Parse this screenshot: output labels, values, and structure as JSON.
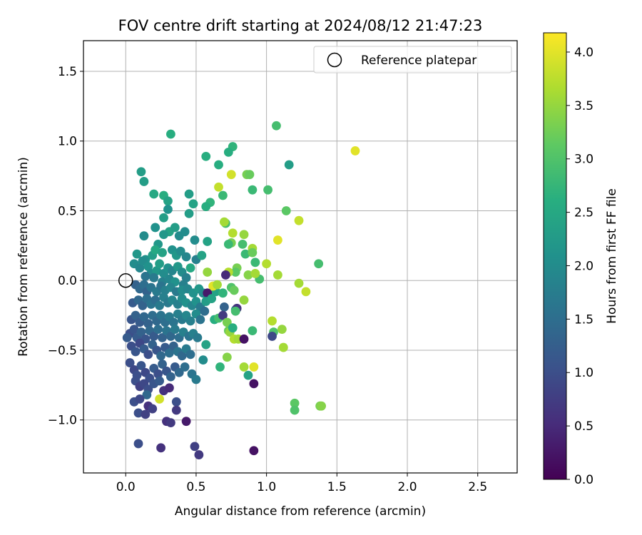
{
  "chart_data": {
    "type": "scatter",
    "title": "FOV centre drift starting at 2024/08/12 21:47:23",
    "xlabel": "Angular distance from reference (arcmin)",
    "ylabel": "Rotation from reference (arcmin)",
    "xlim": [
      -0.3,
      2.78
    ],
    "ylim": [
      -1.38,
      1.72
    ],
    "x_ticks": [
      0.0,
      0.5,
      1.0,
      1.5,
      2.0,
      2.5
    ],
    "x_tick_labels": [
      "0.0",
      "0.5",
      "1.0",
      "1.5",
      "2.0",
      "2.5"
    ],
    "y_ticks": [
      -1.0,
      -0.5,
      0.0,
      0.5,
      1.0,
      1.5
    ],
    "y_tick_labels": [
      "−1.0",
      "−0.5",
      "0.0",
      "0.5",
      "1.0",
      "1.5"
    ],
    "grid": true,
    "legend": {
      "placement": "top-right",
      "entries": [
        {
          "label": "Reference platepar",
          "marker": "open-circle"
        }
      ]
    },
    "reference_point": {
      "x": 0.0,
      "y": 0.0
    },
    "colorbar": {
      "label": "Hours from first FF file",
      "colormap": "viridis",
      "range": [
        0.0,
        4.18
      ],
      "ticks": [
        0.0,
        0.5,
        1.0,
        1.5,
        2.0,
        2.5,
        3.0,
        3.5,
        4.0
      ],
      "tick_labels": [
        "0.0",
        "0.5",
        "1.0",
        "1.5",
        "2.0",
        "2.5",
        "3.0",
        "3.5",
        "4.0"
      ]
    },
    "points": [
      [
        0.32,
        1.05,
        2.6
      ],
      [
        1.07,
        1.11,
        2.9
      ],
      [
        1.63,
        0.93,
        4.0
      ],
      [
        0.76,
        0.96,
        2.7
      ],
      [
        0.73,
        0.92,
        2.6
      ],
      [
        0.57,
        0.89,
        2.6
      ],
      [
        1.16,
        0.83,
        2.3
      ],
      [
        0.66,
        0.83,
        2.6
      ],
      [
        0.11,
        0.78,
        2.3
      ],
      [
        0.75,
        0.76,
        3.9
      ],
      [
        0.86,
        0.76,
        3.3
      ],
      [
        0.88,
        0.76,
        3.2
      ],
      [
        0.13,
        0.71,
        2.3
      ],
      [
        0.66,
        0.67,
        3.8
      ],
      [
        0.9,
        0.65,
        2.8
      ],
      [
        1.01,
        0.65,
        2.9
      ],
      [
        0.69,
        0.61,
        2.8
      ],
      [
        0.2,
        0.62,
        2.5
      ],
      [
        0.27,
        0.61,
        2.6
      ],
      [
        0.45,
        0.62,
        2.3
      ],
      [
        0.3,
        0.57,
        2.4
      ],
      [
        0.48,
        0.55,
        2.4
      ],
      [
        0.6,
        0.56,
        2.7
      ],
      [
        0.57,
        0.53,
        2.6
      ],
      [
        0.3,
        0.51,
        2.1
      ],
      [
        0.45,
        0.48,
        2.3
      ],
      [
        1.14,
        0.5,
        3.1
      ],
      [
        1.23,
        0.43,
        3.8
      ],
      [
        0.27,
        0.45,
        2.3
      ],
      [
        0.71,
        0.41,
        2.9
      ],
      [
        0.7,
        0.42,
        3.6
      ],
      [
        0.21,
        0.38,
        2.1
      ],
      [
        0.31,
        0.35,
        2.4
      ],
      [
        0.35,
        0.38,
        2.3
      ],
      [
        0.42,
        0.35,
        2.0
      ],
      [
        0.27,
        0.33,
        2.2
      ],
      [
        0.38,
        0.32,
        2.0
      ],
      [
        0.13,
        0.32,
        2.0
      ],
      [
        0.76,
        0.34,
        3.7
      ],
      [
        0.84,
        0.33,
        3.5
      ],
      [
        0.75,
        0.27,
        3.3
      ],
      [
        0.73,
        0.26,
        2.8
      ],
      [
        0.49,
        0.29,
        2.0
      ],
      [
        0.58,
        0.28,
        2.4
      ],
      [
        0.83,
        0.26,
        2.9
      ],
      [
        0.23,
        0.26,
        2.2
      ],
      [
        1.08,
        0.29,
        4.0
      ],
      [
        0.08,
        0.19,
        2.2
      ],
      [
        0.14,
        0.15,
        2.1
      ],
      [
        0.19,
        0.18,
        2.3
      ],
      [
        0.21,
        0.22,
        2.5
      ],
      [
        0.26,
        0.2,
        2.4
      ],
      [
        0.33,
        0.22,
        2.1
      ],
      [
        0.36,
        0.18,
        2.2
      ],
      [
        0.39,
        0.21,
        2.0
      ],
      [
        0.43,
        0.17,
        1.9
      ],
      [
        0.5,
        0.15,
        1.8
      ],
      [
        0.54,
        0.18,
        2.4
      ],
      [
        0.85,
        0.19,
        2.8
      ],
      [
        0.9,
        0.23,
        3.6
      ],
      [
        0.9,
        0.2,
        3.2
      ],
      [
        0.92,
        0.13,
        2.8
      ],
      [
        0.79,
        0.09,
        3.3
      ],
      [
        0.78,
        0.06,
        3.1
      ],
      [
        0.73,
        0.06,
        3.7
      ],
      [
        1.0,
        0.12,
        3.7
      ],
      [
        1.08,
        0.04,
        3.6
      ],
      [
        1.37,
        0.12,
        2.9
      ],
      [
        0.87,
        0.04,
        3.4
      ],
      [
        0.95,
        0.01,
        2.9
      ],
      [
        0.92,
        0.05,
        3.6
      ],
      [
        0.58,
        0.06,
        3.5
      ],
      [
        0.06,
        0.12,
        2.0
      ],
      [
        0.1,
        0.09,
        1.9
      ],
      [
        0.12,
        0.14,
        2.0
      ],
      [
        0.16,
        0.1,
        2.1
      ],
      [
        0.18,
        0.05,
        2.0
      ],
      [
        0.22,
        0.07,
        2.2
      ],
      [
        0.24,
        0.12,
        2.3
      ],
      [
        0.27,
        0.05,
        2.0
      ],
      [
        0.3,
        0.09,
        2.1
      ],
      [
        0.33,
        0.07,
        1.9
      ],
      [
        0.37,
        0.1,
        2.2
      ],
      [
        0.4,
        0.06,
        2.0
      ],
      [
        0.43,
        0.02,
        1.8
      ],
      [
        0.46,
        0.09,
        2.5
      ],
      [
        0.14,
        0.03,
        1.6
      ],
      [
        0.2,
        0.02,
        1.7
      ],
      [
        0.26,
        -0.01,
        1.8
      ],
      [
        0.31,
        0.01,
        1.9
      ],
      [
        0.35,
        -0.01,
        2.1
      ],
      [
        0.41,
        -0.03,
        1.8
      ],
      [
        0.07,
        -0.03,
        1.3
      ],
      [
        0.1,
        -0.06,
        1.4
      ],
      [
        0.13,
        -0.03,
        1.5
      ],
      [
        0.15,
        -0.08,
        1.3
      ],
      [
        0.18,
        -0.05,
        1.6
      ],
      [
        0.22,
        -0.08,
        1.7
      ],
      [
        0.25,
        -0.04,
        1.6
      ],
      [
        0.28,
        -0.07,
        1.8
      ],
      [
        0.32,
        -0.05,
        1.9
      ],
      [
        0.36,
        -0.08,
        1.7
      ],
      [
        0.4,
        -0.07,
        2.0
      ],
      [
        0.44,
        -0.06,
        1.9
      ],
      [
        0.48,
        -0.09,
        2.1
      ],
      [
        0.52,
        -0.06,
        2.2
      ],
      [
        0.55,
        -0.09,
        2.0
      ],
      [
        0.6,
        -0.12,
        2.2
      ],
      [
        0.64,
        -0.08,
        2.4
      ],
      [
        0.69,
        -0.09,
        2.7
      ],
      [
        0.75,
        -0.05,
        3.0
      ],
      [
        0.77,
        -0.07,
        3.2
      ],
      [
        0.62,
        -0.04,
        4.0
      ],
      [
        0.65,
        -0.03,
        3.6
      ],
      [
        0.58,
        -0.09,
        0.3
      ],
      [
        0.84,
        -0.14,
        3.5
      ],
      [
        1.23,
        -0.02,
        3.6
      ],
      [
        1.28,
        -0.08,
        3.8
      ],
      [
        0.71,
        0.04,
        0.5
      ],
      [
        0.05,
        -0.16,
        1.2
      ],
      [
        0.09,
        -0.14,
        1.4
      ],
      [
        0.12,
        -0.18,
        1.3
      ],
      [
        0.15,
        -0.13,
        1.5
      ],
      [
        0.18,
        -0.17,
        1.6
      ],
      [
        0.21,
        -0.14,
        1.5
      ],
      [
        0.24,
        -0.18,
        1.7
      ],
      [
        0.27,
        -0.12,
        1.8
      ],
      [
        0.3,
        -0.16,
        1.7
      ],
      [
        0.33,
        -0.14,
        1.9
      ],
      [
        0.37,
        -0.17,
        1.8
      ],
      [
        0.4,
        -0.13,
        2.0
      ],
      [
        0.43,
        -0.16,
        2.1
      ],
      [
        0.47,
        -0.18,
        1.9
      ],
      [
        0.5,
        -0.15,
        2.1
      ],
      [
        0.53,
        -0.19,
        1.7
      ],
      [
        0.57,
        -0.15,
        2.3
      ],
      [
        0.61,
        -0.13,
        2.4
      ],
      [
        0.7,
        -0.19,
        1.3
      ],
      [
        0.78,
        -0.21,
        2.1
      ],
      [
        0.79,
        -0.2,
        0.6
      ],
      [
        0.78,
        -0.22,
        2.9
      ],
      [
        0.04,
        -0.28,
        1.1
      ],
      [
        0.07,
        -0.25,
        1.3
      ],
      [
        0.1,
        -0.3,
        1.2
      ],
      [
        0.13,
        -0.26,
        1.4
      ],
      [
        0.16,
        -0.31,
        1.3
      ],
      [
        0.19,
        -0.25,
        1.5
      ],
      [
        0.22,
        -0.29,
        1.4
      ],
      [
        0.25,
        -0.25,
        1.6
      ],
      [
        0.28,
        -0.3,
        1.5
      ],
      [
        0.31,
        -0.26,
        1.7
      ],
      [
        0.34,
        -0.3,
        1.6
      ],
      [
        0.37,
        -0.24,
        1.8
      ],
      [
        0.4,
        -0.28,
        1.7
      ],
      [
        0.43,
        -0.25,
        1.9
      ],
      [
        0.46,
        -0.29,
        1.8
      ],
      [
        0.5,
        -0.24,
        2.0
      ],
      [
        0.53,
        -0.28,
        1.6
      ],
      [
        0.56,
        -0.22,
        1.5
      ],
      [
        0.63,
        -0.28,
        2.6
      ],
      [
        0.66,
        -0.27,
        2.9
      ],
      [
        0.69,
        -0.25,
        0.7
      ],
      [
        0.72,
        -0.3,
        3.3
      ],
      [
        0.73,
        -0.36,
        3.2
      ],
      [
        0.74,
        -0.37,
        3.5
      ],
      [
        0.76,
        -0.34,
        2.6
      ],
      [
        1.04,
        -0.29,
        3.7
      ],
      [
        0.03,
        -0.38,
        1.0
      ],
      [
        0.06,
        -0.35,
        1.1
      ],
      [
        0.08,
        -0.41,
        1.2
      ],
      [
        0.11,
        -0.37,
        1.3
      ],
      [
        0.14,
        -0.42,
        1.1
      ],
      [
        0.17,
        -0.36,
        1.4
      ],
      [
        0.2,
        -0.4,
        1.2
      ],
      [
        0.23,
        -0.35,
        1.5
      ],
      [
        0.26,
        -0.41,
        1.3
      ],
      [
        0.29,
        -0.36,
        1.6
      ],
      [
        0.32,
        -0.4,
        1.4
      ],
      [
        0.35,
        -0.35,
        1.7
      ],
      [
        0.38,
        -0.41,
        1.5
      ],
      [
        0.41,
        -0.37,
        1.8
      ],
      [
        0.45,
        -0.4,
        1.6
      ],
      [
        0.48,
        -0.38,
        1.8
      ],
      [
        0.51,
        -0.41,
        1.7
      ],
      [
        0.77,
        -0.42,
        3.7
      ],
      [
        0.8,
        -0.42,
        3.6
      ],
      [
        0.84,
        -0.42,
        0.2
      ],
      [
        0.9,
        -0.36,
        2.8
      ],
      [
        1.05,
        -0.37,
        3.0
      ],
      [
        1.04,
        -0.4,
        0.9
      ],
      [
        1.11,
        -0.35,
        3.5
      ],
      [
        0.01,
        -0.41,
        1.2
      ],
      [
        0.04,
        -0.47,
        1.0
      ],
      [
        0.07,
        -0.51,
        1.1
      ],
      [
        0.1,
        -0.45,
        0.9
      ],
      [
        0.13,
        -0.49,
        1.2
      ],
      [
        0.16,
        -0.53,
        1.0
      ],
      [
        0.19,
        -0.46,
        1.3
      ],
      [
        0.22,
        -0.5,
        1.1
      ],
      [
        0.25,
        -0.54,
        1.4
      ],
      [
        0.28,
        -0.48,
        1.2
      ],
      [
        0.31,
        -0.52,
        1.5
      ],
      [
        0.34,
        -0.47,
        1.3
      ],
      [
        0.37,
        -0.51,
        1.6
      ],
      [
        0.4,
        -0.54,
        1.4
      ],
      [
        0.43,
        -0.49,
        1.7
      ],
      [
        0.46,
        -0.53,
        1.5
      ],
      [
        0.57,
        -0.46,
        2.4
      ],
      [
        0.55,
        -0.57,
        2.0
      ],
      [
        0.72,
        -0.55,
        3.4
      ],
      [
        0.84,
        -0.62,
        3.6
      ],
      [
        0.91,
        -0.62,
        4.0
      ],
      [
        0.87,
        -0.68,
        2.4
      ],
      [
        1.12,
        -0.48,
        3.6
      ],
      [
        0.67,
        -0.62,
        2.7
      ],
      [
        0.03,
        -0.59,
        1.0
      ],
      [
        0.06,
        -0.64,
        0.9
      ],
      [
        0.08,
        -0.68,
        1.0
      ],
      [
        0.11,
        -0.61,
        1.1
      ],
      [
        0.14,
        -0.66,
        0.9
      ],
      [
        0.17,
        -0.7,
        1.0
      ],
      [
        0.2,
        -0.63,
        1.2
      ],
      [
        0.23,
        -0.67,
        1.0
      ],
      [
        0.26,
        -0.6,
        1.3
      ],
      [
        0.29,
        -0.65,
        1.1
      ],
      [
        0.32,
        -0.69,
        1.3
      ],
      [
        0.35,
        -0.62,
        1.2
      ],
      [
        0.38,
        -0.66,
        1.4
      ],
      [
        0.42,
        -0.62,
        1.5
      ],
      [
        0.47,
        -0.67,
        1.6
      ],
      [
        0.5,
        -0.71,
        1.7
      ],
      [
        0.91,
        -0.74,
        0.2
      ],
      [
        0.07,
        -0.72,
        1.0
      ],
      [
        0.1,
        -0.76,
        0.8
      ],
      [
        0.13,
        -0.74,
        0.9
      ],
      [
        0.16,
        -0.78,
        1.0
      ],
      [
        0.2,
        -0.74,
        1.1
      ],
      [
        0.24,
        -0.72,
        1.2
      ],
      [
        0.27,
        -0.79,
        0.6
      ],
      [
        0.31,
        -0.77,
        0.5
      ],
      [
        0.15,
        -0.82,
        1.4
      ],
      [
        0.06,
        -0.87,
        1.0
      ],
      [
        0.1,
        -0.85,
        0.9
      ],
      [
        0.36,
        -0.87,
        1.0
      ],
      [
        0.24,
        -0.85,
        3.9
      ],
      [
        0.16,
        -0.9,
        0.6
      ],
      [
        0.19,
        -0.92,
        0.8
      ],
      [
        0.09,
        -0.95,
        1.0
      ],
      [
        0.14,
        -0.96,
        0.8
      ],
      [
        0.36,
        -0.93,
        0.7
      ],
      [
        1.2,
        -0.88,
        3.1
      ],
      [
        1.2,
        -0.93,
        3.0
      ],
      [
        1.38,
        -0.9,
        3.3
      ],
      [
        1.39,
        -0.9,
        3.4
      ],
      [
        0.29,
        -1.01,
        0.6
      ],
      [
        0.32,
        -1.02,
        0.7
      ],
      [
        0.43,
        -1.01,
        0.3
      ],
      [
        0.09,
        -1.17,
        1.0
      ],
      [
        0.25,
        -1.2,
        0.6
      ],
      [
        0.49,
        -1.19,
        0.8
      ],
      [
        0.52,
        -1.25,
        0.7
      ],
      [
        0.91,
        -1.22,
        0.2
      ]
    ]
  }
}
